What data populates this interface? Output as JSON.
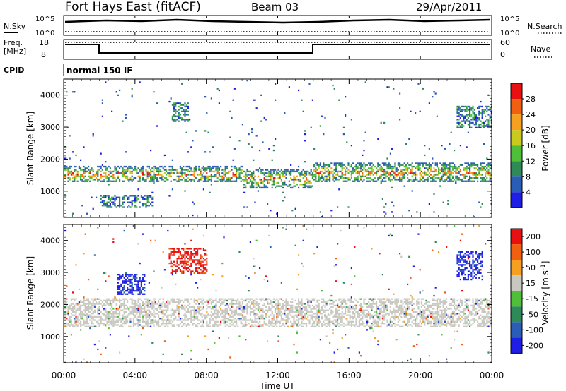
{
  "header": {
    "station": "Fort Hays East (fitACF)",
    "beam": "Beam 03",
    "date": "29/Apr/2011"
  },
  "top_panels": {
    "nsky_label": "N.Sky",
    "nsky_ticks": [
      "10^5",
      "10^0"
    ],
    "nsearch_label": "N.Search",
    "nsearch_ticks": [
      "10^5",
      "10^0"
    ],
    "freq_label_1": "Freq.",
    "freq_label_2": "[MHz]",
    "freq_ticks": [
      "18",
      "8"
    ],
    "nave_label": "Nave",
    "nave_ticks": [
      "60",
      "0"
    ],
    "cpid_label": "CPID",
    "cpid_value": "normal 150 IF"
  },
  "chart_data": [
    {
      "type": "heatmap",
      "panel": "power",
      "ylabel": "Slant Range [km]",
      "xlabel": "Time UT",
      "xlim": [
        "00:00",
        "24:00"
      ],
      "ylim": [
        180,
        4500
      ],
      "yticks": [
        "1000",
        "2000",
        "3000",
        "4000"
      ],
      "xticks": [
        "00:00",
        "04:00",
        "08:00",
        "12:00",
        "16:00",
        "20:00",
        "00:00"
      ],
      "colorbar": {
        "label": "Power [dB]",
        "ticks": [
          "4",
          "8",
          "12",
          "16",
          "20",
          "24",
          "28"
        ],
        "colors": [
          "#1e1ee6",
          "#2a5db5",
          "#2e8b57",
          "#4fbf3a",
          "#c9c91e",
          "#f5a020",
          "#f06010",
          "#e81010"
        ]
      },
      "regions": [
        {
          "t0": 0.0,
          "t1": 10.0,
          "r0": 1300,
          "r1": 1800,
          "level": "high",
          "note": "dominant band"
        },
        {
          "t0": 10.0,
          "t1": 14.0,
          "r0": 1100,
          "r1": 1700,
          "level": "high"
        },
        {
          "t0": 14.0,
          "t1": 24.0,
          "r0": 1300,
          "r1": 1900,
          "level": "high"
        },
        {
          "t0": 6.0,
          "t1": 7.0,
          "r0": 3200,
          "r1": 3800,
          "level": "mid"
        },
        {
          "t0": 2.0,
          "t1": 5.0,
          "r0": 500,
          "r1": 900,
          "level": "mid"
        },
        {
          "t0": 22.0,
          "t1": 24.0,
          "r0": 3000,
          "r1": 3700,
          "level": "mid"
        }
      ]
    },
    {
      "type": "heatmap",
      "panel": "velocity",
      "ylabel": "Slant Range [km]",
      "xlabel": "Time UT",
      "xlim": [
        "00:00",
        "24:00"
      ],
      "ylim": [
        180,
        4500
      ],
      "yticks": [
        "1000",
        "2000",
        "3000",
        "4000"
      ],
      "xticks": [
        "00:00",
        "04:00",
        "08:00",
        "12:00",
        "16:00",
        "20:00",
        "00:00"
      ],
      "colorbar": {
        "label": "Velocity [m s",
        "label_superscript": "-1",
        "label_close": "]",
        "ticks": [
          "200",
          "100",
          "50",
          "15",
          "-15",
          "-50",
          "-100",
          "-200"
        ],
        "colors": [
          "#1e1ee6",
          "#2a5db5",
          "#2e8b57",
          "#4fbf3a",
          "#c8c8c0",
          "#f5a020",
          "#f06010",
          "#e81010"
        ]
      },
      "regions": [
        {
          "t0": 0.0,
          "t1": 24.0,
          "r0": 1300,
          "r1": 2200,
          "velocity_class": "ground scatter (grey)"
        },
        {
          "t0": 5.8,
          "t1": 8.0,
          "r0": 3000,
          "r1": 3800,
          "velocity_class": "-200 (red)"
        },
        {
          "t0": 3.0,
          "t1": 4.5,
          "r0": 2300,
          "r1": 3000,
          "velocity_class": "200 (blue)"
        },
        {
          "t0": 22.0,
          "t1": 23.5,
          "r0": 2800,
          "r1": 3700,
          "velocity_class": "200 (blue)"
        }
      ]
    }
  ]
}
